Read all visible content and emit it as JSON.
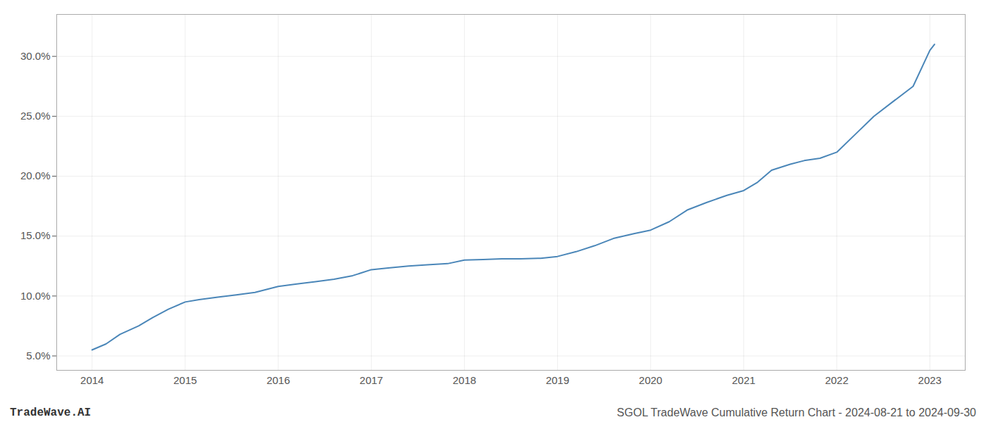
{
  "chart_data": {
    "type": "line",
    "x": [
      2014.0,
      2014.15,
      2014.3,
      2014.5,
      2014.65,
      2014.82,
      2015.0,
      2015.15,
      2015.35,
      2015.55,
      2015.75,
      2016.0,
      2016.2,
      2016.4,
      2016.6,
      2016.8,
      2017.0,
      2017.2,
      2017.4,
      2017.6,
      2017.82,
      2018.0,
      2018.2,
      2018.4,
      2018.6,
      2018.82,
      2019.0,
      2019.2,
      2019.4,
      2019.6,
      2019.82,
      2020.0,
      2020.2,
      2020.4,
      2020.6,
      2020.82,
      2021.0,
      2021.15,
      2021.3,
      2021.5,
      2021.65,
      2021.82,
      2022.0,
      2022.2,
      2022.4,
      2022.6,
      2022.82,
      2023.0,
      2023.05
    ],
    "values": [
      5.5,
      6.0,
      6.8,
      7.5,
      8.2,
      8.9,
      9.5,
      9.7,
      9.9,
      10.1,
      10.3,
      10.8,
      11.0,
      11.2,
      11.4,
      11.7,
      12.2,
      12.35,
      12.5,
      12.6,
      12.7,
      13.0,
      13.05,
      13.1,
      13.1,
      13.15,
      13.3,
      13.7,
      14.2,
      14.8,
      15.2,
      15.5,
      16.2,
      17.2,
      17.8,
      18.4,
      18.8,
      19.5,
      20.5,
      21.0,
      21.3,
      21.5,
      22.0,
      23.5,
      25.0,
      26.2,
      27.5,
      30.5,
      31.0
    ],
    "color": "#4a86b8",
    "xlim": [
      2013.62,
      2023.38
    ],
    "ylim": [
      3.8,
      33.5
    ],
    "xticks": [
      2014,
      2015,
      2016,
      2017,
      2018,
      2019,
      2020,
      2021,
      2022,
      2023
    ],
    "yticks": [
      {
        "value": 5.0,
        "label": "5.0%"
      },
      {
        "value": 10.0,
        "label": "10.0%"
      },
      {
        "value": 15.0,
        "label": "15.0%"
      },
      {
        "value": 20.0,
        "label": "20.0%"
      },
      {
        "value": 25.0,
        "label": "25.0%"
      },
      {
        "value": 30.0,
        "label": "30.0%"
      }
    ],
    "grid": true,
    "annotations": [
      "TradeWave.AI",
      "SGOL TradeWave Cumulative Return Chart - 2024-08-21 to 2024-09-30"
    ]
  }
}
